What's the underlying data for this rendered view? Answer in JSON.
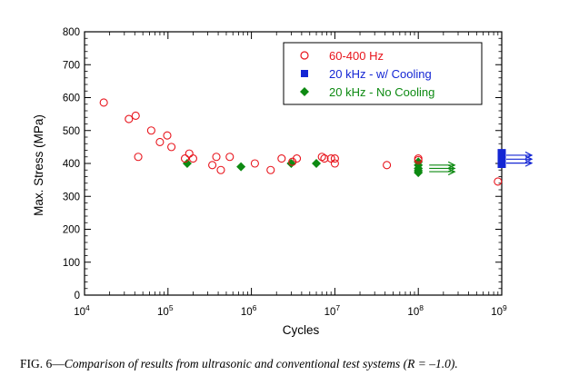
{
  "chart_data": {
    "type": "scatter",
    "title": "",
    "xlabel": "Cycles",
    "ylabel": "Max. Stress (MPa)",
    "xscale": "log",
    "xlim": [
      10000,
      1000000000
    ],
    "ylim": [
      0,
      800
    ],
    "yticks": [
      0,
      100,
      200,
      300,
      400,
      500,
      600,
      700,
      800
    ],
    "xticks": [
      {
        "base": "10",
        "exp": "4"
      },
      {
        "base": "10",
        "exp": "5"
      },
      {
        "base": "10",
        "exp": "6"
      },
      {
        "base": "10",
        "exp": "7"
      },
      {
        "base": "10",
        "exp": "8"
      },
      {
        "base": "10",
        "exp": "9"
      }
    ],
    "legend_position": "top-right",
    "colors": {
      "red": "#e8141c",
      "blue": "#1426d4",
      "green": "#0d8a12"
    },
    "series": [
      {
        "name": "60-400 Hz",
        "marker": "open-circle",
        "color": "#e8141c",
        "x": [
          17000,
          34000,
          41000,
          44000,
          63000,
          80000,
          98000,
          110000,
          160000,
          180000,
          200000,
          340000,
          380000,
          430000,
          550000,
          1100000,
          1700000,
          2300000,
          3100000,
          3500000,
          7000000,
          7500000,
          9000000,
          10000000,
          10000000,
          42000000,
          100000000,
          100000000,
          900000000
        ],
        "y": [
          585,
          535,
          545,
          420,
          500,
          465,
          485,
          450,
          415,
          430,
          415,
          395,
          420,
          380,
          420,
          400,
          380,
          415,
          405,
          415,
          420,
          415,
          415,
          415,
          400,
          395,
          415,
          410,
          345
        ]
      },
      {
        "name": "20 kHz - w/ Cooling",
        "marker": "filled-square",
        "color": "#1426d4",
        "x": [
          1000000000,
          1000000000,
          1000000000
        ],
        "y": [
          430,
          415,
          400
        ],
        "runout": true
      },
      {
        "name": "20 kHz - No Cooling",
        "marker": "filled-diamond",
        "color": "#0d8a12",
        "x": [
          170000,
          750000,
          3000000,
          6000000,
          100000000,
          100000000,
          100000000,
          100000000,
          100000000
        ],
        "y": [
          400,
          390,
          400,
          400,
          405,
          395,
          385,
          378,
          372
        ],
        "runout_group_y": [
          395,
          385,
          375
        ]
      }
    ]
  },
  "caption": {
    "prefix": "FIG. 6—",
    "text": "Comparison of results from ultrasonic and conventional test systems (R = –1.0)."
  }
}
